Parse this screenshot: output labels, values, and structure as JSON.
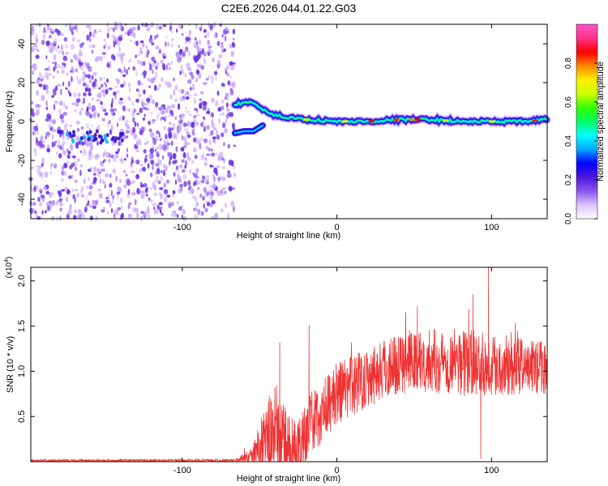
{
  "title": "C2E6.2026.044.01.22.G03",
  "chart_data": [
    {
      "type": "heatmap",
      "xlabel": "Height of straight line (km)",
      "ylabel": "Frequency (Hz)",
      "xlim": [
        -198,
        136
      ],
      "ylim": [
        -50,
        50
      ],
      "x_ticks": [
        -100,
        0,
        100
      ],
      "y_ticks": [
        -40,
        -20,
        0,
        20,
        40
      ],
      "noise_region_x": [
        -198,
        -66
      ],
      "band_trace": [
        {
          "x": -66,
          "y": 8
        },
        {
          "x": -64,
          "y": 9
        },
        {
          "x": -58,
          "y": 10
        },
        {
          "x": -52,
          "y": 9
        },
        {
          "x": -46,
          "y": 5
        },
        {
          "x": -40,
          "y": 3
        },
        {
          "x": -30,
          "y": 2
        },
        {
          "x": -20,
          "y": 1
        },
        {
          "x": 0,
          "y": 0
        },
        {
          "x": 20,
          "y": 0
        },
        {
          "x": 40,
          "y": 1
        },
        {
          "x": 60,
          "y": 1
        },
        {
          "x": 80,
          "y": 0
        },
        {
          "x": 100,
          "y": 0
        },
        {
          "x": 120,
          "y": 0
        },
        {
          "x": 136,
          "y": 1
        }
      ],
      "lower_branch": [
        {
          "x": -66,
          "y": -6
        },
        {
          "x": -60,
          "y": -5
        },
        {
          "x": -54,
          "y": -5
        },
        {
          "x": -48,
          "y": -2
        }
      ],
      "early_cluster": {
        "x_range": [
          -180,
          -138
        ],
        "y": -8
      },
      "colorbar": {
        "label": "Normalized spectral amplitude",
        "range": [
          0,
          1
        ],
        "ticks": [
          "0.0",
          "0.2",
          "0.4",
          "0.6",
          "0.8"
        ],
        "colors": [
          "#ffffff",
          "#d9c3ff",
          "#8855ee",
          "#4a17dd",
          "#0000ff",
          "#00aaff",
          "#00ffff",
          "#00ff66",
          "#33ff00",
          "#ccff00",
          "#ffee00",
          "#ff8800",
          "#ff0000",
          "#ff3388",
          "#ff55cc"
        ]
      },
      "colors": {
        "speckle": "#6a2ee6",
        "speckle_light": "#c7a8ff"
      }
    },
    {
      "type": "line",
      "xlabel": "Height of straight line (km)",
      "ylabel": "SNR (10 * v/v)",
      "multiplier_label": "(x10",
      "multiplier_exponent": "4",
      "multiplier_close": ")",
      "xlim": [
        -198,
        136
      ],
      "ylim": [
        0,
        21500
      ],
      "x_ticks": [
        -100,
        0,
        100
      ],
      "y_ticks": [
        {
          "value": 5000,
          "label": "0.5"
        },
        {
          "value": 10000,
          "label": "1.0"
        },
        {
          "value": 15000,
          "label": "1.5"
        },
        {
          "value": 20000,
          "label": "2.0"
        }
      ],
      "series_color": "#ee3333",
      "envelope": [
        {
          "x": -198,
          "base": 120,
          "amp": 120
        },
        {
          "x": -66,
          "base": 150,
          "amp": 150
        },
        {
          "x": -55,
          "base": 600,
          "amp": 900
        },
        {
          "x": -48,
          "base": 2000,
          "amp": 3500
        },
        {
          "x": -40,
          "base": 3000,
          "amp": 6000
        },
        {
          "x": -32,
          "base": 1500,
          "amp": 4000
        },
        {
          "x": -25,
          "base": 1200,
          "amp": 3500
        },
        {
          "x": -20,
          "base": 3500,
          "amp": 3500
        },
        {
          "x": -10,
          "base": 5500,
          "amp": 3500
        },
        {
          "x": 0,
          "base": 7500,
          "amp": 3500
        },
        {
          "x": 20,
          "base": 9500,
          "amp": 3500
        },
        {
          "x": 40,
          "base": 11000,
          "amp": 3500
        },
        {
          "x": 60,
          "base": 11200,
          "amp": 3500
        },
        {
          "x": 80,
          "base": 11000,
          "amp": 3800
        },
        {
          "x": 100,
          "base": 10800,
          "amp": 3500
        },
        {
          "x": 120,
          "base": 10500,
          "amp": 3200
        },
        {
          "x": 136,
          "base": 10500,
          "amp": 3000
        }
      ],
      "spikes": [
        {
          "x": -37,
          "y": 13200
        },
        {
          "x": -18,
          "y": 15100
        },
        {
          "x": 98,
          "y": 21500
        },
        {
          "x": 88,
          "y": 18500
        },
        {
          "x": 52,
          "y": 17200
        },
        {
          "x": 93,
          "y": 300
        }
      ]
    }
  ]
}
